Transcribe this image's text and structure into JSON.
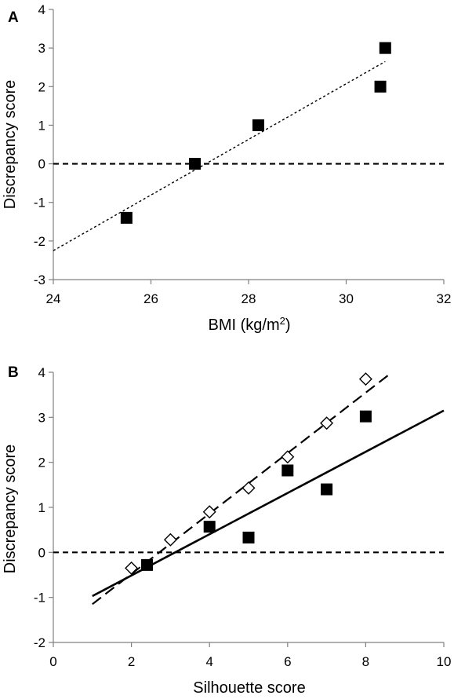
{
  "chart_data": [
    {
      "panel_label": "A",
      "type": "scatter",
      "xlabel": "BMI (kg/m",
      "xlabel_sup": "2",
      "xlabel_end": ")",
      "ylabel": "Discrepancy score",
      "xlim": [
        24,
        32
      ],
      "ylim": [
        -3,
        4
      ],
      "xticks": [
        "24",
        "26",
        "28",
        "30",
        "32"
      ],
      "yticks": [
        "-3",
        "-2",
        "-1",
        "0",
        "1",
        "2",
        "3",
        "4"
      ],
      "grid": false,
      "series": [
        {
          "marker": "filled-square",
          "color": "#000000",
          "points": [
            {
              "x": 25.5,
              "y": -1.4
            },
            {
              "x": 26.9,
              "y": 0.0
            },
            {
              "x": 28.2,
              "y": 1.0
            },
            {
              "x": 30.7,
              "y": 2.0
            },
            {
              "x": 30.8,
              "y": 3.0
            }
          ]
        }
      ],
      "lines": [
        {
          "style": "dotted",
          "from": [
            24,
            -2.25
          ],
          "to": [
            30.8,
            2.65
          ]
        },
        {
          "style": "dashed-reference",
          "from": [
            24,
            0
          ],
          "to": [
            32,
            0
          ]
        }
      ]
    },
    {
      "panel_label": "B",
      "type": "scatter",
      "xlabel": "Silhouette score",
      "ylabel": "Discrepancy score",
      "xlim": [
        0,
        10
      ],
      "ylim": [
        -2,
        4
      ],
      "xticks": [
        "0",
        "2",
        "4",
        "6",
        "8",
        "10"
      ],
      "yticks": [
        "-2",
        "-1",
        "0",
        "1",
        "2",
        "3",
        "4"
      ],
      "grid": false,
      "series": [
        {
          "marker": "open-diamond",
          "color": "#000000",
          "points": [
            {
              "x": 2,
              "y": -0.35
            },
            {
              "x": 3,
              "y": 0.28
            },
            {
              "x": 4,
              "y": 0.9
            },
            {
              "x": 5,
              "y": 1.43
            },
            {
              "x": 6,
              "y": 2.12
            },
            {
              "x": 7,
              "y": 2.87
            },
            {
              "x": 8,
              "y": 3.85
            }
          ]
        },
        {
          "marker": "filled-square",
          "color": "#000000",
          "points": [
            {
              "x": 2.4,
              "y": -0.28
            },
            {
              "x": 4,
              "y": 0.57
            },
            {
              "x": 5,
              "y": 0.33
            },
            {
              "x": 6,
              "y": 1.82
            },
            {
              "x": 7,
              "y": 1.4
            },
            {
              "x": 8,
              "y": 3.02
            }
          ]
        }
      ],
      "lines": [
        {
          "style": "long-dashed",
          "from": [
            1,
            -1.15
          ],
          "to": [
            8.6,
            3.95
          ]
        },
        {
          "style": "solid",
          "from": [
            1,
            -0.97
          ],
          "to": [
            10,
            3.15
          ]
        },
        {
          "style": "dashed-reference",
          "from": [
            0,
            0
          ],
          "to": [
            10,
            0
          ]
        }
      ]
    }
  ]
}
